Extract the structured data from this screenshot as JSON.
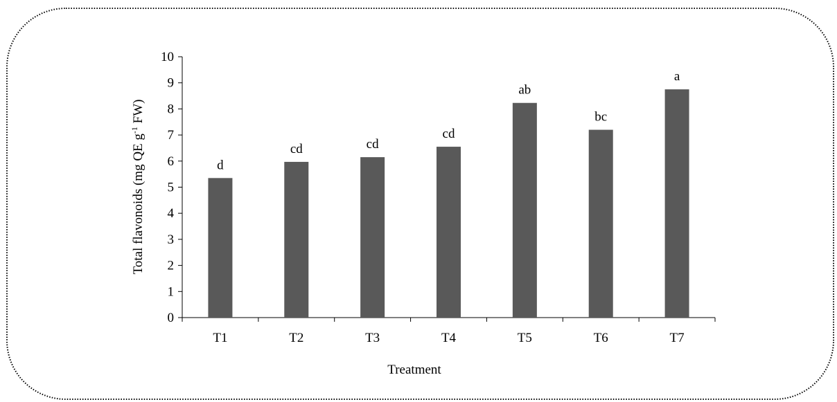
{
  "chart_data": {
    "type": "bar",
    "categories": [
      "T1",
      "T2",
      "T3",
      "T4",
      "T5",
      "T6",
      "T7"
    ],
    "values": [
      5.35,
      5.97,
      6.15,
      6.55,
      8.23,
      7.2,
      8.75
    ],
    "data_labels": [
      "d",
      "cd",
      "cd",
      "cd",
      "ab",
      "bc",
      "a"
    ],
    "title": "",
    "xlabel": "Treatment",
    "ylabel": {
      "main": "Total flavonoids (mg QE g",
      "sup": "-1",
      "tail": " FW)"
    },
    "ylim": [
      0,
      10
    ],
    "yticks": [
      "0",
      "1",
      "2",
      "3",
      "4",
      "5",
      "6",
      "7",
      "8",
      "9",
      "10"
    ],
    "grid": false,
    "legend": "none",
    "bar_color": "#595959",
    "axis_color": "#000000",
    "frame_border": "dotted"
  }
}
